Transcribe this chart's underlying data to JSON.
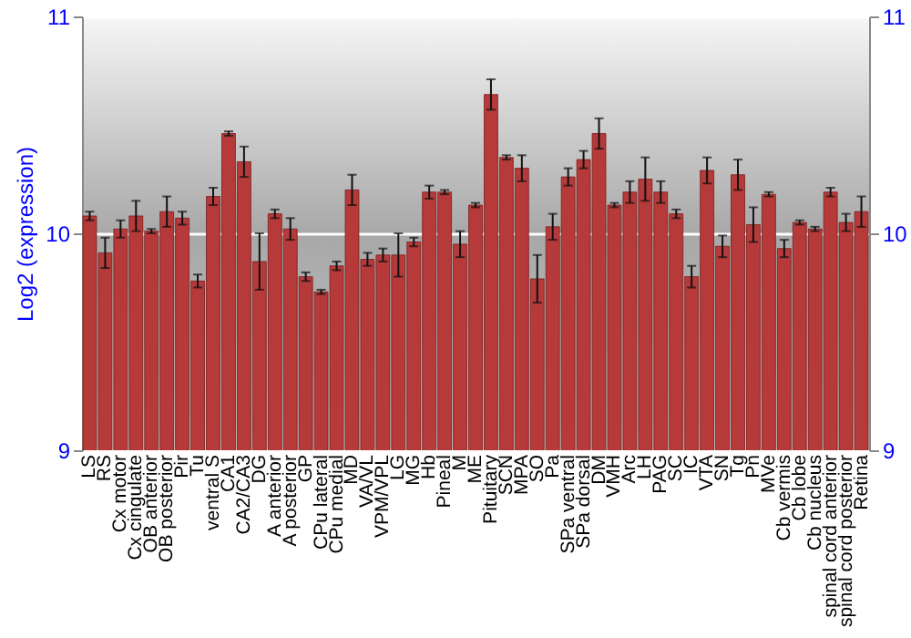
{
  "chart_data": {
    "type": "bar",
    "ylabel": "Log2 (expression)",
    "categories": [
      "LS",
      "RS",
      "Cx motor",
      "Cx cingulate",
      "OB anterior",
      "OB posterior",
      "Pir",
      "Tu",
      "ventral S",
      "CA1",
      "CA2/CA3",
      "DG",
      "A anterior",
      "A posterior",
      "GP",
      "CPu lateral",
      "CPu medial",
      "MD",
      "VA/VL",
      "VPM/VPL",
      "LG",
      "MG",
      "Hb",
      "Pineal",
      "M",
      "ME",
      "Pituitary",
      "SCN",
      "MPA",
      "SO",
      "Pa",
      "SPa ventral",
      "SPa dorsal",
      "DM",
      "VMH",
      "Arc",
      "LH",
      "PAG",
      "SC",
      "IC",
      "VTA",
      "SN",
      "Tg",
      "Pn",
      "MVe",
      "Cb vermis",
      "Cb lobe",
      "Cb nucleus",
      "spinal cord anterior",
      "spinal cord posterior",
      "Retina"
    ],
    "values": [
      10.08,
      9.91,
      10.02,
      10.08,
      10.01,
      10.1,
      10.07,
      9.78,
      10.17,
      10.46,
      10.33,
      9.87,
      10.09,
      10.02,
      9.8,
      9.73,
      9.85,
      10.2,
      9.88,
      9.9,
      9.9,
      9.96,
      10.19,
      10.19,
      9.95,
      10.13,
      10.64,
      10.35,
      10.3,
      9.79,
      10.03,
      10.26,
      10.34,
      10.46,
      10.13,
      10.19,
      10.25,
      10.19,
      10.09,
      9.8,
      10.29,
      9.94,
      10.27,
      10.04,
      10.18,
      9.93,
      10.05,
      10.02,
      10.19,
      10.05,
      10.1
    ],
    "errors": [
      0.02,
      0.07,
      0.04,
      0.07,
      0.01,
      0.07,
      0.03,
      0.03,
      0.04,
      0.01,
      0.07,
      0.13,
      0.02,
      0.05,
      0.02,
      0.01,
      0.02,
      0.07,
      0.03,
      0.03,
      0.1,
      0.02,
      0.03,
      0.01,
      0.06,
      0.01,
      0.07,
      0.01,
      0.06,
      0.11,
      0.06,
      0.04,
      0.04,
      0.07,
      0.01,
      0.05,
      0.1,
      0.05,
      0.02,
      0.05,
      0.06,
      0.05,
      0.07,
      0.08,
      0.01,
      0.04,
      0.01,
      0.01,
      0.02,
      0.04,
      0.07
    ],
    "color": "#b73a3a",
    "ylim": [
      9,
      11
    ],
    "yticks": [
      9,
      10,
      11
    ],
    "y2lim": [
      9,
      11
    ],
    "y2ticks": [
      9,
      10,
      11
    ],
    "grid": "y"
  }
}
